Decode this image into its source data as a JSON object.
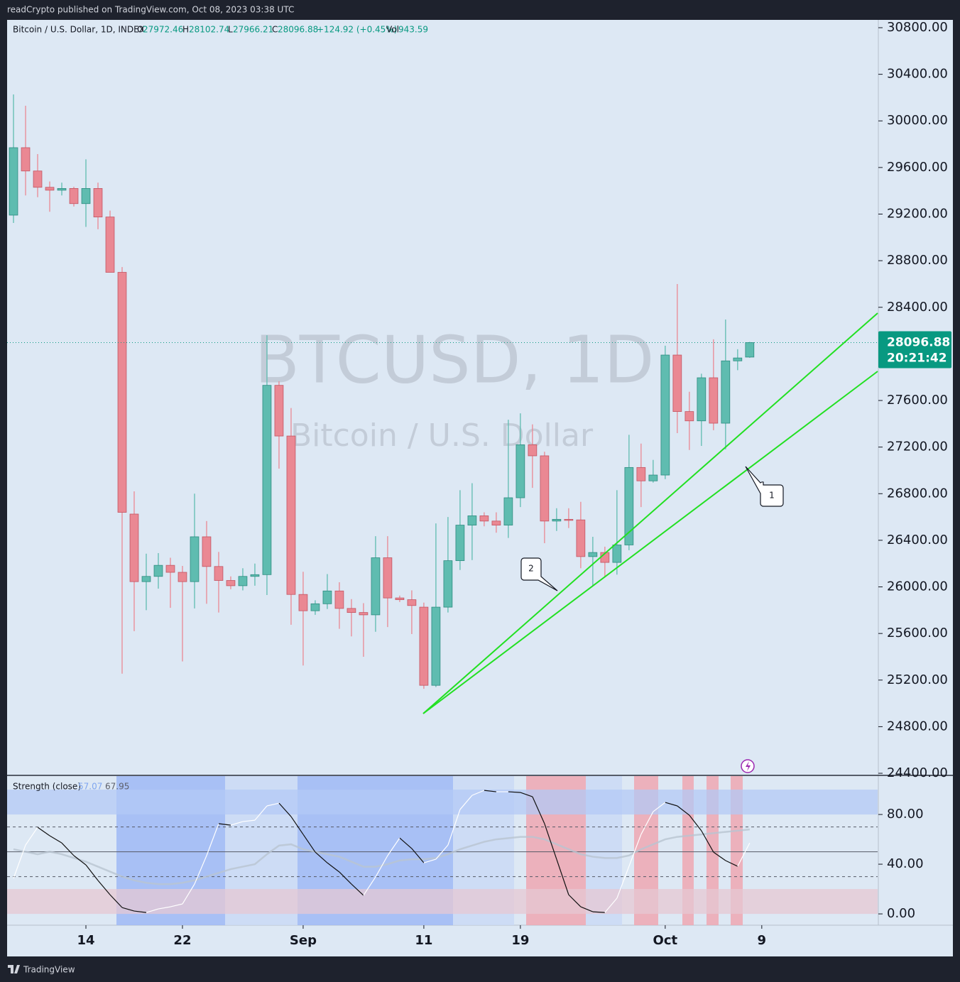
{
  "header": {
    "publisher": "readCrypto published on TradingView.com, Oct 08, 2023 03:38 UTC",
    "symbol": "Bitcoin / U.S. Dollar, 1D, INDEX",
    "open_label": "O",
    "high_label": "H",
    "low_label": "L",
    "close_label": "C",
    "change": "+124.92 (+0.45%)",
    "volume_label": "Vol",
    "volume": 943.59,
    "watermark_symbol": "BTCUSD, 1D",
    "watermark_name": "Bitcoin / U.S. Dollar",
    "countdown": "20:21:42",
    "callouts": [
      "1",
      "2"
    ],
    "footer": "TradingView"
  },
  "chart_data": [
    {
      "type": "candlestick",
      "title": "Bitcoin / U.S. Dollar, 1D, INDEX",
      "up_color": "#5fbcb0",
      "down_color": "#ea8893",
      "open": [
        29191,
        29770,
        29570,
        29430,
        29405,
        29420,
        29290,
        29420,
        29175,
        28700,
        26625,
        26045,
        26090,
        26185,
        26125,
        26045,
        26430,
        26175,
        26055,
        26010,
        26090,
        26105,
        27730,
        27295,
        25935,
        25795,
        25855,
        25965,
        25815,
        25780,
        25760,
        26250,
        25905,
        25890,
        25826,
        25155,
        25826,
        26225,
        26530,
        26610,
        26565,
        26530,
        26765,
        27220,
        27125,
        26565,
        26580,
        26575,
        26260,
        26295,
        26210,
        26360,
        27025,
        26910,
        26960,
        27990,
        27505,
        27425,
        27795,
        27405,
        27940,
        27972.46
      ],
      "high": [
        30227,
        30130,
        29715,
        29480,
        29470,
        29435,
        29670,
        29470,
        29230,
        28745,
        26820,
        26285,
        26290,
        26250,
        26180,
        26800,
        26565,
        26300,
        26090,
        26160,
        26200,
        28160,
        27765,
        27535,
        26130,
        25885,
        26110,
        26040,
        25895,
        25860,
        26435,
        26435,
        25925,
        25970,
        25865,
        26545,
        26600,
        26830,
        26890,
        26640,
        26640,
        27435,
        27490,
        27395,
        27160,
        26675,
        26675,
        26730,
        26430,
        26345,
        26830,
        27305,
        27230,
        27090,
        28070,
        28600,
        27675,
        27830,
        28125,
        28295,
        28040,
        28102.74
      ],
      "low": [
        29124,
        29360,
        29345,
        29220,
        29360,
        29265,
        29090,
        29070,
        28700,
        25255,
        25620,
        25800,
        25985,
        25820,
        25360,
        25815,
        25855,
        25780,
        25980,
        25970,
        26010,
        25930,
        27015,
        25675,
        25325,
        25760,
        25810,
        25640,
        25575,
        25400,
        25615,
        25655,
        25870,
        25595,
        25125,
        25140,
        25780,
        26145,
        26230,
        26520,
        26465,
        26420,
        26685,
        26850,
        26375,
        26480,
        26505,
        26160,
        26005,
        26085,
        26105,
        26315,
        26685,
        26895,
        26925,
        27320,
        27175,
        27210,
        27345,
        27180,
        27860,
        27966.21
      ],
      "close": [
        29770,
        29570,
        29430,
        29405,
        29420,
        29290,
        29420,
        29175,
        28700,
        26640,
        26045,
        26090,
        26185,
        26125,
        26045,
        26430,
        26175,
        26055,
        26010,
        26090,
        26105,
        27730,
        27295,
        25935,
        25795,
        25855,
        25965,
        25815,
        25780,
        25760,
        26250,
        25905,
        25890,
        25840,
        25155,
        25826,
        26225,
        26530,
        26610,
        26565,
        26530,
        26765,
        27220,
        27125,
        26565,
        26580,
        26575,
        26260,
        26295,
        26210,
        26360,
        27025,
        26910,
        26960,
        27990,
        27505,
        27425,
        27795,
        27405,
        27940,
        27965,
        28096.88
      ],
      "xlim": [
        -0.53,
        71.6
      ],
      "xticks": [
        {
          "value": 6,
          "label": "14"
        },
        {
          "value": 14,
          "label": "22"
        },
        {
          "value": 24,
          "label": "Sep"
        },
        {
          "value": 34,
          "label": "11"
        },
        {
          "value": 42,
          "label": "19"
        },
        {
          "value": 54,
          "label": "Oct"
        },
        {
          "value": 62,
          "label": "9"
        }
      ],
      "ylim": [
        24382,
        30867
      ],
      "yticks": [
        {
          "value": 30800,
          "label": "30800.00"
        },
        {
          "value": 30400,
          "label": "30400.00"
        },
        {
          "value": 30000,
          "label": "30000.00"
        },
        {
          "value": 29600,
          "label": "29600.00"
        },
        {
          "value": 29200,
          "label": "29200.00"
        },
        {
          "value": 28800,
          "label": "28800.00"
        },
        {
          "value": 28400,
          "label": "28400.00"
        },
        {
          "value": 27600,
          "label": "27600.00"
        },
        {
          "value": 27200,
          "label": "27200.00"
        },
        {
          "value": 26800,
          "label": "26800.00"
        },
        {
          "value": 26400,
          "label": "26400.00"
        },
        {
          "value": 26000,
          "label": "26000.00"
        },
        {
          "value": 25600,
          "label": "25600.00"
        },
        {
          "value": 25200,
          "label": "25200.00"
        },
        {
          "value": 24800,
          "label": "24800.00"
        },
        {
          "value": 24400,
          "label": "24400.00"
        }
      ],
      "price_line_color": "#089981"
    },
    {
      "type": "line",
      "title": "Strength (close)",
      "series": [
        {
          "color": "#ffffff",
          "falling_color": "#111111",
          "legend_color": "#7fa6f0",
          "values": [
            28.6,
            55.4,
            69.7,
            62.9,
            57.1,
            46.9,
            39.4,
            26.9,
            15.4,
            5.1,
            2.3,
            1.1,
            4.0,
            5.7,
            8.0,
            24.0,
            46.9,
            72.6,
            71.4,
            74.3,
            75.4,
            86.9,
            89.1,
            78.3,
            64.0,
            49.7,
            41.1,
            33.7,
            24.0,
            14.9,
            29.7,
            46.9,
            61.1,
            52.6,
            41.1,
            44.0,
            55.4,
            84.0,
            95.4,
            99.4,
            98.3,
            98.3,
            97.7,
            94.3,
            72.6,
            44.0,
            15.4,
            5.7,
            1.7,
            1.1,
            12.6,
            38.3,
            64.0,
            82.3,
            89.7,
            86.9,
            79.4,
            66.9,
            49.7,
            42.9,
            38.3,
            57.07
          ]
        },
        {
          "color": "#b9c4d1",
          "legend_color": "#5d606b",
          "values": [
            52,
            50,
            48,
            50,
            48,
            45,
            42,
            38,
            34,
            30,
            27,
            25,
            24,
            24,
            25,
            27,
            30,
            33,
            36,
            38,
            40,
            48,
            55,
            56,
            52,
            50,
            48,
            46,
            42,
            38,
            38,
            40,
            43,
            44,
            44,
            45,
            48,
            52,
            55,
            58,
            60,
            61,
            62,
            62,
            60,
            56,
            52,
            48,
            46,
            45,
            45,
            47,
            52,
            56,
            60,
            62,
            63,
            64,
            65,
            66,
            67,
            67.95
          ]
        }
      ],
      "ylim": [
        -9.1,
        110.9
      ],
      "yticks": [
        {
          "value": 80,
          "label": "80.00"
        },
        {
          "value": 40,
          "label": "40.00"
        },
        {
          "value": 0,
          "label": "0.00"
        }
      ],
      "bands": [
        {
          "range": [
            80,
            100
          ],
          "color": "#b3c9f5"
        },
        {
          "range": [
            0,
            20
          ],
          "color": "#e6c8d3"
        }
      ],
      "levels": [
        70,
        50,
        30
      ]
    }
  ]
}
